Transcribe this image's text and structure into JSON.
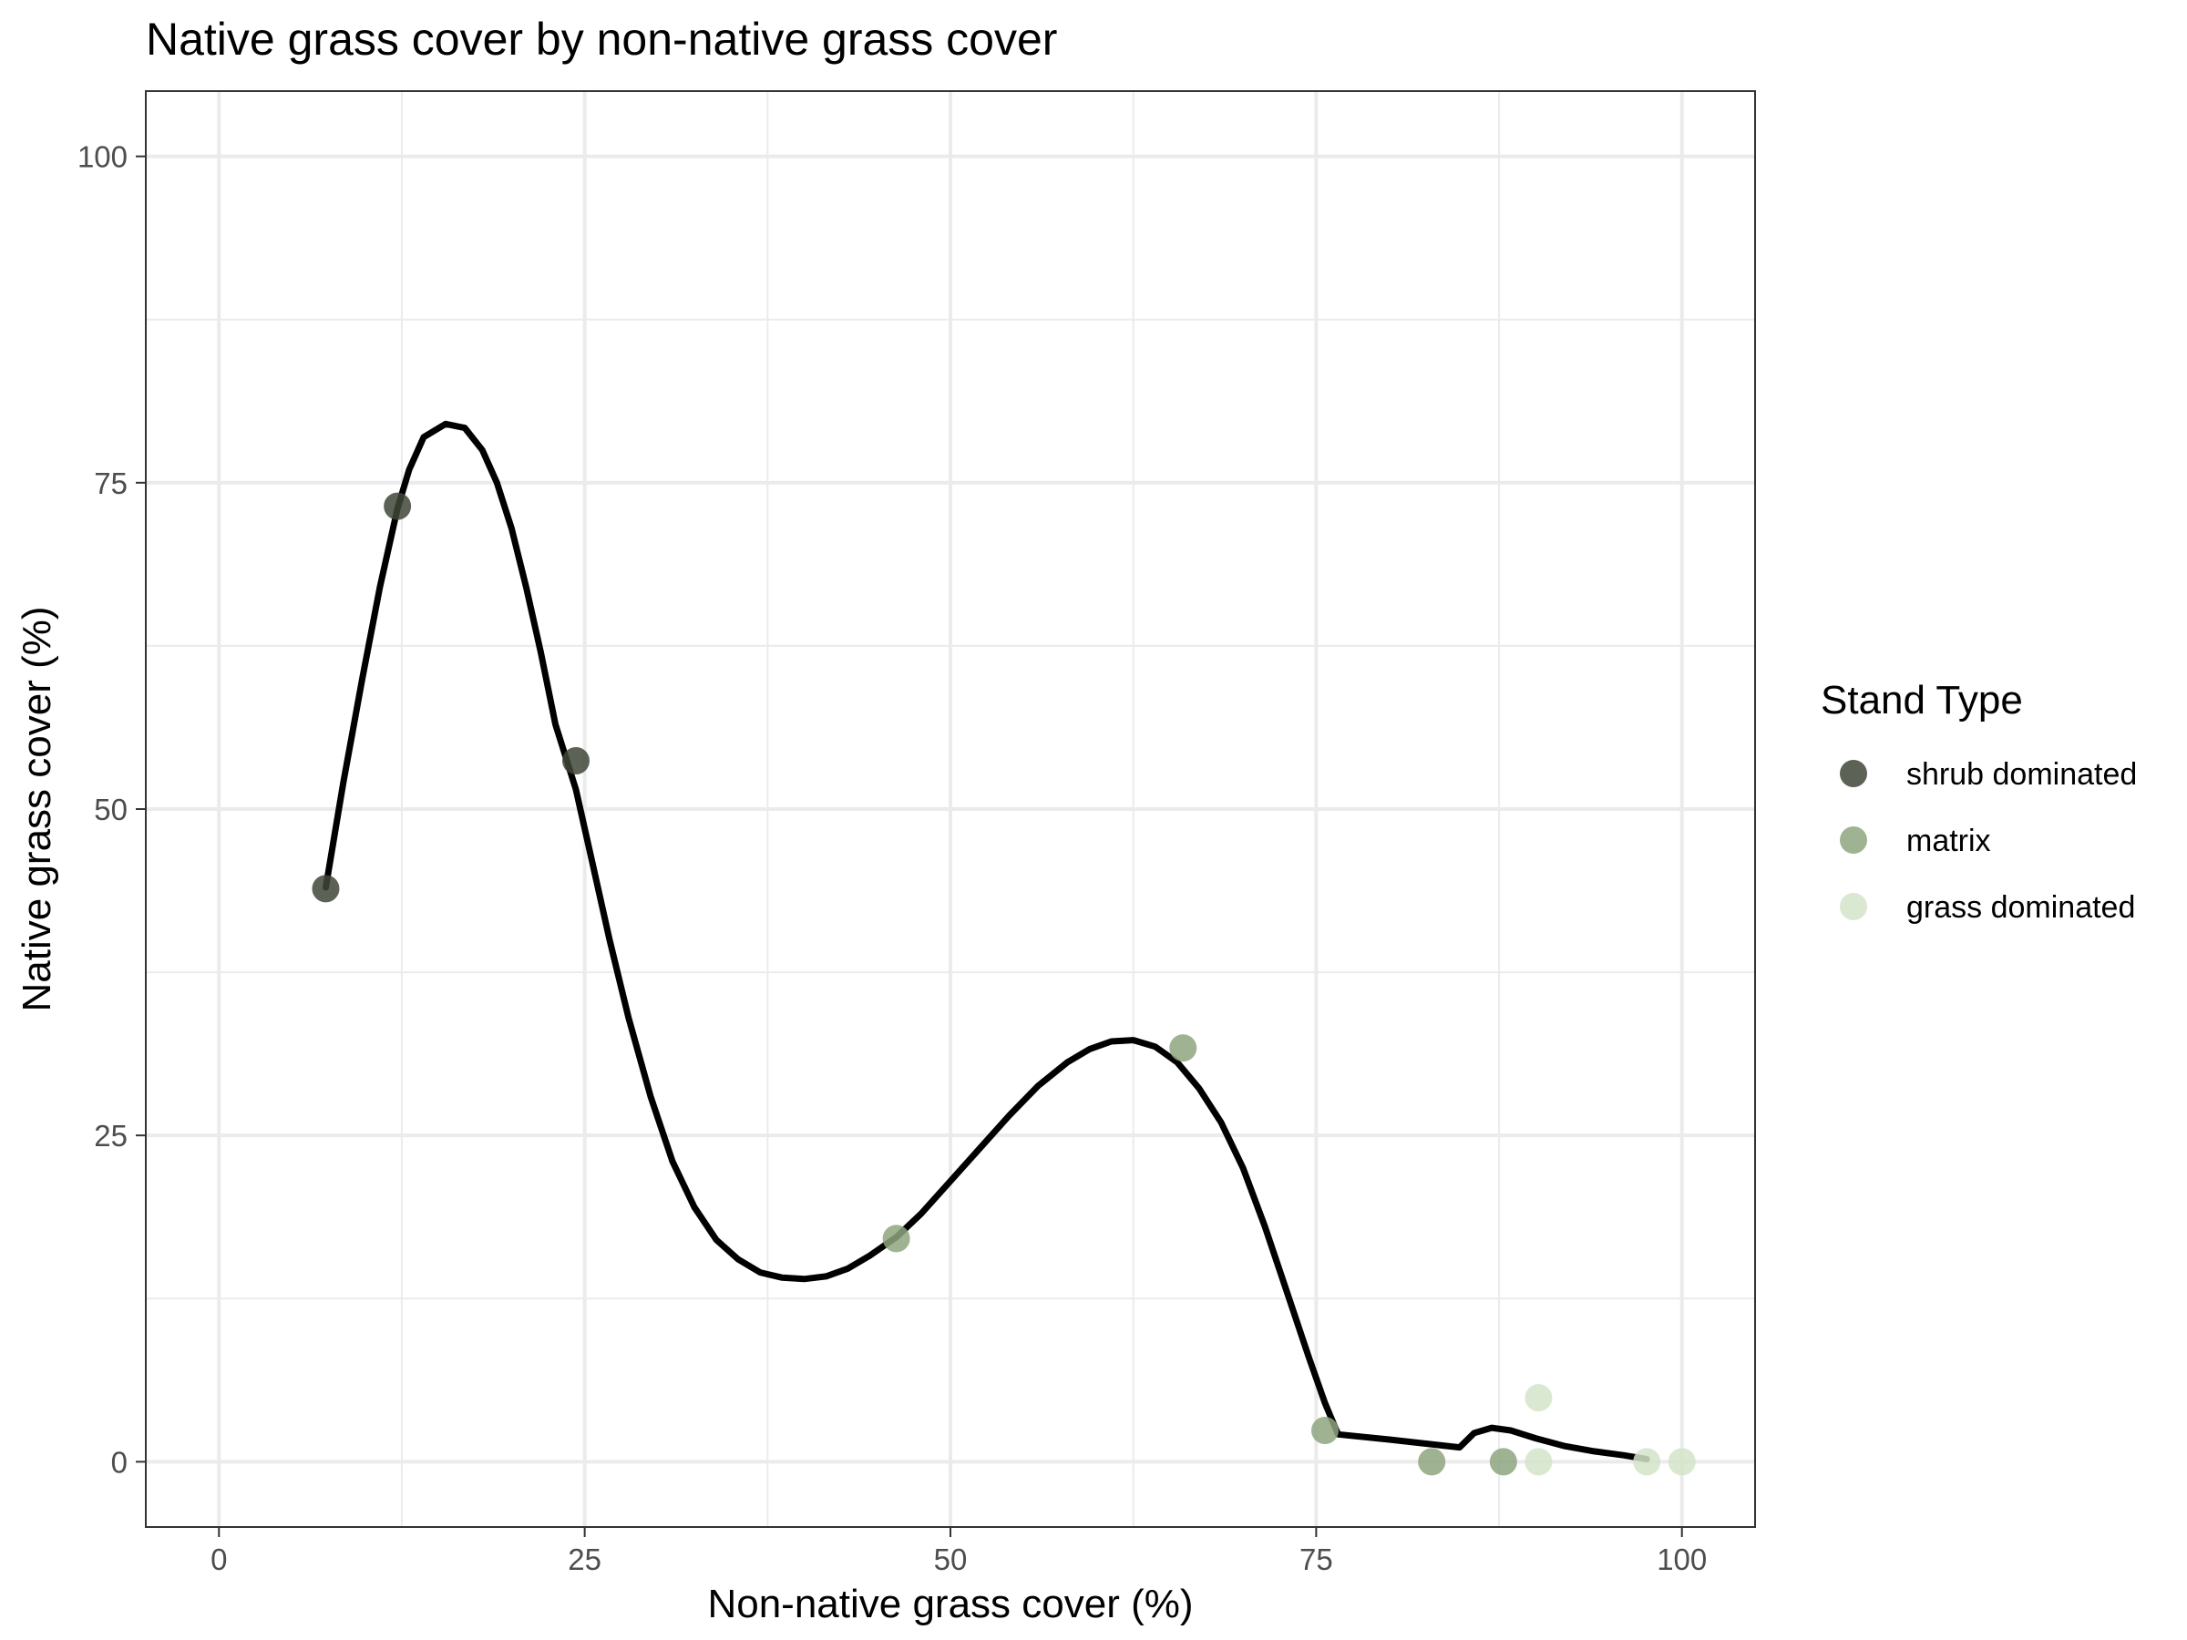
{
  "chart_data": {
    "type": "scatter",
    "title": "Native grass cover by non-native grass cover",
    "xlabel": "Non-native grass cover (%)",
    "ylabel": "Native grass cover (%)",
    "xlim": [
      -5,
      105
    ],
    "ylim": [
      -5,
      105
    ],
    "x_ticks": [
      "0",
      "25",
      "50",
      "75",
      "100"
    ],
    "y_ticks": [
      "0",
      "25",
      "50",
      "75",
      "100"
    ],
    "grid": true,
    "legend": {
      "title": "Stand Type",
      "placement": "right",
      "entries": [
        {
          "label": "shrub dominated",
          "color": "#3f4737"
        },
        {
          "label": "matrix",
          "color": "#8ea47f"
        },
        {
          "label": "grass dominated",
          "color": "#d5e4c9"
        }
      ]
    },
    "series": [
      {
        "name": "shrub dominated",
        "color": "#3f4737",
        "points": [
          [
            7.3,
            43.9
          ],
          [
            12.2,
            73.2
          ],
          [
            24.4,
            53.7
          ]
        ]
      },
      {
        "name": "matrix",
        "color": "#8ea47f",
        "points": [
          [
            46.3,
            17.1
          ],
          [
            65.9,
            31.7
          ],
          [
            75.6,
            2.4
          ],
          [
            82.9,
            0
          ],
          [
            87.8,
            0
          ]
        ]
      },
      {
        "name": "grass dominated",
        "color": "#d5e4c9",
        "points": [
          [
            90.2,
            4.9
          ],
          [
            90.2,
            0
          ],
          [
            97.6,
            0
          ],
          [
            100,
            0
          ]
        ]
      }
    ],
    "smooth_line": {
      "color": "#000000",
      "points": [
        [
          7.3,
          44
        ],
        [
          8.5,
          52
        ],
        [
          9.8,
          60
        ],
        [
          11,
          67
        ],
        [
          12.2,
          73
        ],
        [
          13,
          76
        ],
        [
          14,
          78.5
        ],
        [
          15.5,
          79.5
        ],
        [
          16.8,
          79.2
        ],
        [
          18,
          77.5
        ],
        [
          19,
          75
        ],
        [
          20,
          71.5
        ],
        [
          21,
          67
        ],
        [
          22,
          62
        ],
        [
          23,
          56.5
        ],
        [
          24.4,
          51.5
        ],
        [
          25.5,
          46
        ],
        [
          26.7,
          40
        ],
        [
          28,
          34
        ],
        [
          29.5,
          28
        ],
        [
          31,
          23
        ],
        [
          32.5,
          19.5
        ],
        [
          34,
          17
        ],
        [
          35.5,
          15.5
        ],
        [
          37,
          14.5
        ],
        [
          38.5,
          14.1
        ],
        [
          40,
          14
        ],
        [
          41.5,
          14.2
        ],
        [
          43,
          14.8
        ],
        [
          44.5,
          15.8
        ],
        [
          46.3,
          17.2
        ],
        [
          48,
          19
        ],
        [
          50,
          21.5
        ],
        [
          52,
          24
        ],
        [
          54,
          26.5
        ],
        [
          56,
          28.8
        ],
        [
          58,
          30.6
        ],
        [
          59.5,
          31.6
        ],
        [
          61,
          32.2
        ],
        [
          62.5,
          32.3
        ],
        [
          64,
          31.8
        ],
        [
          65.5,
          30.6
        ],
        [
          67,
          28.6
        ],
        [
          68.5,
          26
        ],
        [
          70,
          22.5
        ],
        [
          71.5,
          18
        ],
        [
          73,
          13
        ],
        [
          74.5,
          8
        ],
        [
          75.6,
          4.5
        ],
        [
          76.5,
          2.1
        ],
        [
          80,
          1.7
        ],
        [
          84.8,
          1.1
        ],
        [
          85.8,
          2.2
        ],
        [
          87,
          2.6
        ],
        [
          88.3,
          2.4
        ],
        [
          90,
          1.8
        ],
        [
          92,
          1.2
        ],
        [
          94,
          0.8
        ],
        [
          96,
          0.5
        ],
        [
          97.6,
          0.2
        ]
      ]
    }
  }
}
